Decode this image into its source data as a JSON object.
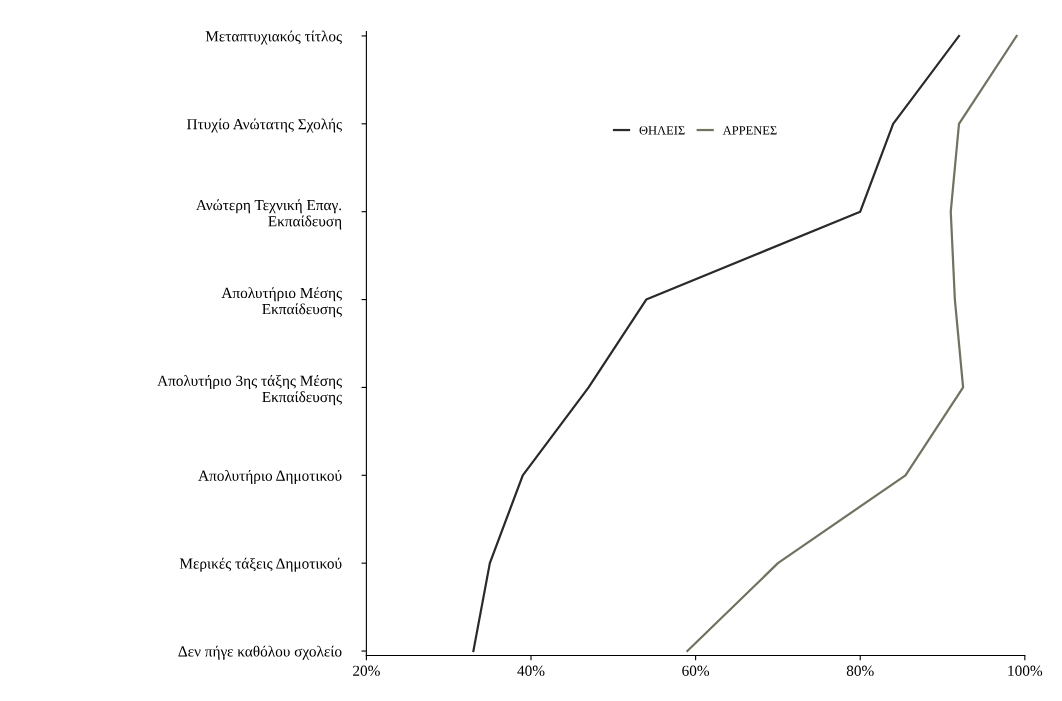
{
  "chart_data": {
    "type": "line",
    "orientation": "horizontal",
    "categories": [
      "Μεταπτυχιακός τίτλος",
      "Πτυχίο Ανώτατης Σχολής",
      "Ανώτερη Τεχνική Επαγ.\nΕκπαίδευση",
      "Απολυτήριο Μέσης\nΕκπαίδευσης",
      "Απολυτήριο 3ης τάξης Μέσης\nΕκπαίδευσης",
      "Απολυτήριο Δημοτικού",
      "Μερικές τάξεις Δημοτικού",
      "Δεν πήγε καθόλου σχολείο"
    ],
    "series": [
      {
        "name": "ΘΗΛΕΙΣ",
        "color": "#2a2a2a",
        "values": [
          92,
          84,
          80,
          54,
          47,
          39,
          35,
          33
        ]
      },
      {
        "name": "ΑΡΡΕΝΕΣ",
        "color": "#6e7460",
        "values": [
          99,
          92,
          91,
          91.5,
          92.5,
          85.5,
          70,
          59
        ]
      }
    ],
    "xlim": [
      20,
      100
    ],
    "xticks": [
      {
        "value": 20,
        "label": "20%"
      },
      {
        "value": 40,
        "label": "40%"
      },
      {
        "value": 60,
        "label": "60%"
      },
      {
        "value": 80,
        "label": "80%"
      },
      {
        "value": 100,
        "label": "100%"
      }
    ],
    "grid": false,
    "legend": "top",
    "marker": "none",
    "line_style": "solid"
  }
}
